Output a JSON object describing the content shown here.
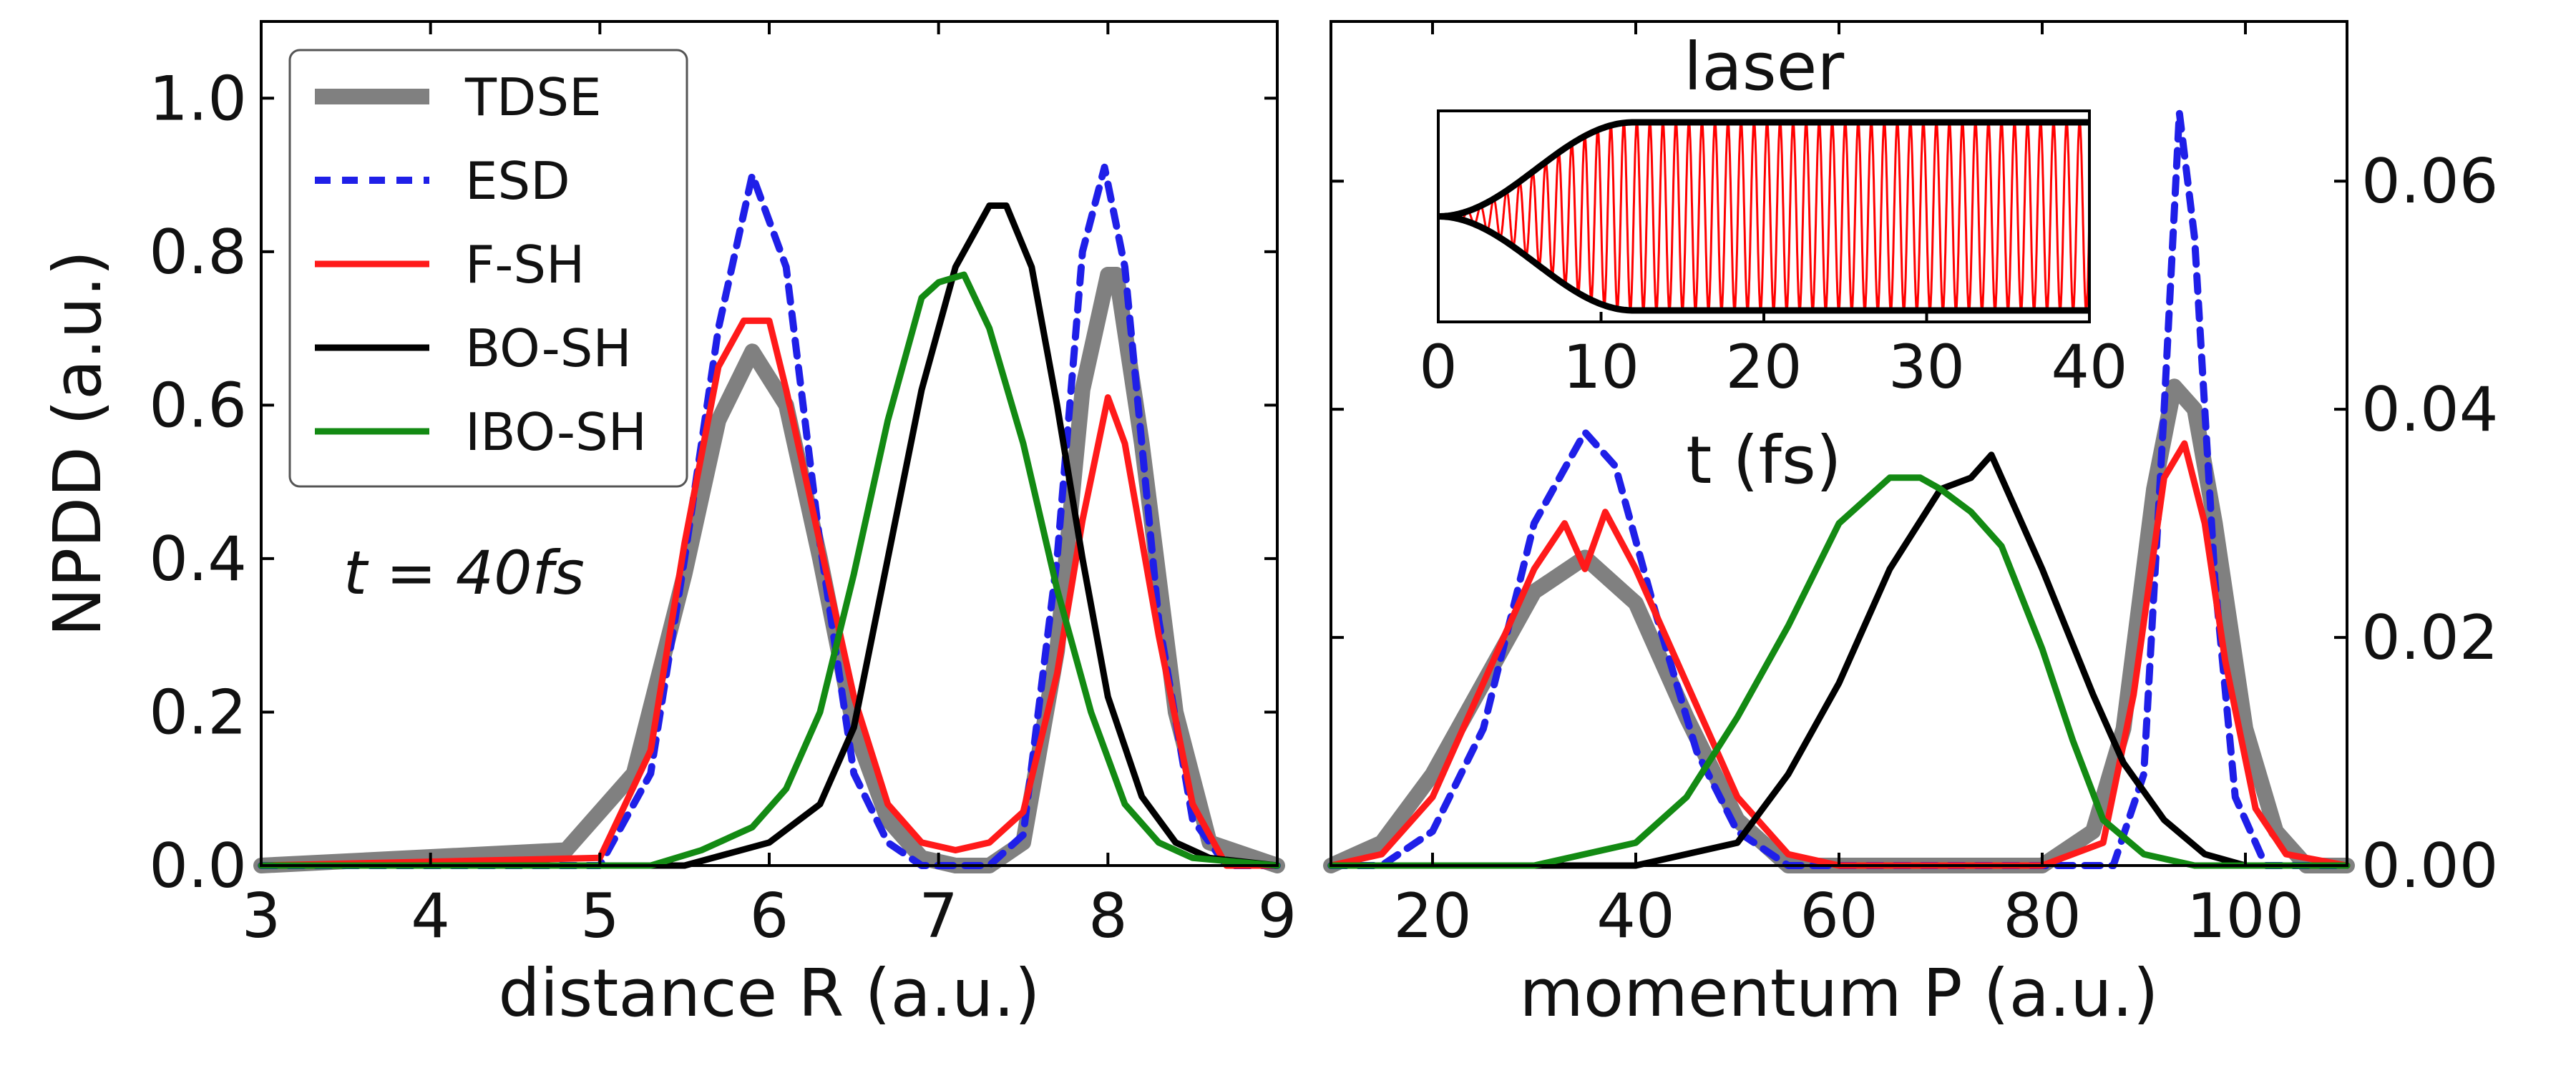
{
  "chart_data": [
    {
      "type": "line",
      "panel": "left",
      "xlabel": "distance R (a.u.)",
      "ylabel": "NPDD (a.u.)",
      "xlim": [
        3,
        9
      ],
      "ylim": [
        0,
        1.1
      ],
      "xticks": [
        "3",
        "4",
        "5",
        "6",
        "7",
        "8",
        "9"
      ],
      "yticks": [
        "0.0",
        "0.2",
        "0.4",
        "0.6",
        "0.8",
        "1.0"
      ],
      "annotation": "t = 40fs",
      "legend_position": "top-left",
      "series": [
        {
          "name": "TDSE",
          "color": "#808080",
          "style": "solid-thick",
          "x": [
            3.0,
            4.8,
            5.2,
            5.5,
            5.7,
            5.9,
            6.1,
            6.3,
            6.5,
            6.7,
            6.9,
            7.1,
            7.3,
            7.5,
            7.7,
            7.85,
            8.0,
            8.05,
            8.2,
            8.4,
            8.6,
            9.0
          ],
          "y": [
            0.0,
            0.02,
            0.12,
            0.38,
            0.58,
            0.67,
            0.6,
            0.4,
            0.18,
            0.06,
            0.01,
            0.0,
            0.0,
            0.03,
            0.28,
            0.62,
            0.77,
            0.77,
            0.55,
            0.2,
            0.03,
            0.0
          ]
        },
        {
          "name": "ESD",
          "color": "#1f1fe8",
          "style": "dashed",
          "x": [
            3.0,
            5.0,
            5.3,
            5.5,
            5.7,
            5.9,
            6.1,
            6.3,
            6.5,
            6.7,
            6.9,
            7.1,
            7.3,
            7.5,
            7.7,
            7.85,
            7.98,
            8.1,
            8.3,
            8.5,
            8.7,
            9.0
          ],
          "y": [
            0.0,
            0.0,
            0.12,
            0.4,
            0.7,
            0.9,
            0.78,
            0.42,
            0.12,
            0.03,
            0.0,
            0.0,
            0.0,
            0.04,
            0.4,
            0.8,
            0.91,
            0.78,
            0.32,
            0.06,
            0.0,
            0.0
          ]
        },
        {
          "name": "F-SH",
          "color": "#ff1a1a",
          "style": "solid",
          "x": [
            3.0,
            5.0,
            5.3,
            5.5,
            5.7,
            5.85,
            6.0,
            6.1,
            6.3,
            6.5,
            6.7,
            6.9,
            7.1,
            7.3,
            7.5,
            7.7,
            7.85,
            8.0,
            8.1,
            8.3,
            8.5,
            8.7,
            9.0
          ],
          "y": [
            0.0,
            0.01,
            0.15,
            0.42,
            0.65,
            0.71,
            0.71,
            0.62,
            0.42,
            0.22,
            0.08,
            0.03,
            0.02,
            0.03,
            0.07,
            0.25,
            0.45,
            0.61,
            0.55,
            0.3,
            0.08,
            0.0,
            0.0
          ]
        },
        {
          "name": "BO-SH",
          "color": "#000000",
          "style": "solid",
          "x": [
            3.0,
            5.5,
            6.0,
            6.3,
            6.5,
            6.7,
            6.9,
            7.1,
            7.3,
            7.4,
            7.55,
            7.7,
            7.85,
            8.0,
            8.2,
            8.4,
            8.6,
            9.0
          ],
          "y": [
            0.0,
            0.0,
            0.03,
            0.08,
            0.18,
            0.4,
            0.62,
            0.78,
            0.86,
            0.86,
            0.78,
            0.6,
            0.4,
            0.22,
            0.09,
            0.03,
            0.01,
            0.0
          ]
        },
        {
          "name": "IBO-SH",
          "color": "#138a13",
          "style": "solid",
          "x": [
            3.0,
            5.3,
            5.6,
            5.9,
            6.1,
            6.3,
            6.5,
            6.7,
            6.9,
            7.0,
            7.15,
            7.3,
            7.5,
            7.7,
            7.9,
            8.1,
            8.3,
            8.5,
            9.0
          ],
          "y": [
            0.0,
            0.0,
            0.02,
            0.05,
            0.1,
            0.2,
            0.38,
            0.58,
            0.74,
            0.76,
            0.77,
            0.7,
            0.55,
            0.36,
            0.2,
            0.08,
            0.03,
            0.01,
            0.0
          ]
        }
      ]
    },
    {
      "type": "line",
      "panel": "right",
      "xlabel": "momentum P (a.u.)",
      "ylabel": "",
      "xlim": [
        10,
        110
      ],
      "ylim": [
        0,
        0.074
      ],
      "xticks": [
        "20",
        "40",
        "60",
        "80",
        "100"
      ],
      "yticks": [
        "0.00",
        "0.02",
        "0.04",
        "0.06"
      ],
      "y_axis_side": "right",
      "series": [
        {
          "name": "TDSE",
          "color": "#808080",
          "style": "solid-thick",
          "x": [
            10,
            15,
            20,
            25,
            30,
            35,
            40,
            45,
            50,
            55,
            60,
            70,
            80,
            85,
            88,
            91,
            93,
            95,
            97,
            100,
            103,
            106,
            110
          ],
          "y": [
            0.0,
            0.002,
            0.008,
            0.016,
            0.024,
            0.027,
            0.023,
            0.013,
            0.004,
            0.0,
            0.0,
            0.0,
            0.0,
            0.003,
            0.012,
            0.033,
            0.042,
            0.04,
            0.03,
            0.012,
            0.003,
            0.0,
            0.0
          ]
        },
        {
          "name": "ESD",
          "color": "#1f1fe8",
          "style": "dashed",
          "x": [
            10,
            15,
            20,
            25,
            30,
            35,
            38,
            42,
            46,
            50,
            55,
            60,
            70,
            80,
            87,
            90,
            92,
            93.5,
            95,
            97,
            99,
            102,
            110
          ],
          "y": [
            0.0,
            0.0,
            0.003,
            0.012,
            0.03,
            0.038,
            0.035,
            0.022,
            0.01,
            0.003,
            0.0,
            0.0,
            0.0,
            0.0,
            0.0,
            0.008,
            0.04,
            0.066,
            0.055,
            0.025,
            0.006,
            0.0,
            0.0
          ]
        },
        {
          "name": "F-SH",
          "color": "#ff1a1a",
          "style": "solid",
          "x": [
            10,
            15,
            20,
            25,
            30,
            33,
            35,
            37,
            40,
            45,
            50,
            55,
            60,
            70,
            80,
            86,
            89,
            92,
            94,
            96,
            98,
            101,
            104,
            110
          ],
          "y": [
            0.0,
            0.001,
            0.006,
            0.016,
            0.026,
            0.03,
            0.026,
            0.031,
            0.026,
            0.016,
            0.006,
            0.001,
            0.0,
            0.0,
            0.0,
            0.002,
            0.015,
            0.034,
            0.037,
            0.03,
            0.018,
            0.005,
            0.001,
            0.0
          ]
        },
        {
          "name": "BO-SH",
          "color": "#000000",
          "style": "solid",
          "x": [
            10,
            40,
            50,
            55,
            60,
            65,
            70,
            73,
            75,
            77,
            80,
            85,
            88,
            92,
            96,
            100,
            110
          ],
          "y": [
            0.0,
            0.0,
            0.002,
            0.008,
            0.016,
            0.026,
            0.033,
            0.034,
            0.036,
            0.032,
            0.026,
            0.015,
            0.009,
            0.004,
            0.001,
            0.0,
            0.0
          ]
        },
        {
          "name": "IBO-SH",
          "color": "#138a13",
          "style": "solid",
          "x": [
            10,
            30,
            40,
            45,
            50,
            55,
            60,
            65,
            68,
            70,
            73,
            76,
            80,
            83,
            86,
            90,
            95,
            110
          ],
          "y": [
            0.0,
            0.0,
            0.002,
            0.006,
            0.013,
            0.021,
            0.03,
            0.034,
            0.034,
            0.033,
            0.031,
            0.028,
            0.019,
            0.011,
            0.004,
            0.001,
            0.0,
            0.0
          ]
        }
      ]
    },
    {
      "type": "line",
      "panel": "inset",
      "title": "laser",
      "xlabel": "t (fs)",
      "xlim": [
        0,
        40
      ],
      "xticks": [
        "0",
        "10",
        "20",
        "30",
        "40"
      ],
      "envelope_ramp_fs": 12,
      "oscillation_period_fs": 0.8,
      "series": [
        {
          "name": "",
          "color": "#ff0000",
          "style": "oscillation"
        },
        {
          "name": "",
          "color": "#000000",
          "style": "envelope"
        }
      ]
    }
  ],
  "legend": {
    "entries": [
      {
        "label": "TDSE",
        "color": "#808080",
        "style": "solid-thick"
      },
      {
        "label": "ESD",
        "color": "#1f1fe8",
        "style": "dashed"
      },
      {
        "label": "F-SH",
        "color": "#ff1a1a",
        "style": "solid"
      },
      {
        "label": "BO-SH",
        "color": "#000000",
        "style": "solid"
      },
      {
        "label": "IBO-SH",
        "color": "#138a13",
        "style": "solid"
      }
    ]
  }
}
